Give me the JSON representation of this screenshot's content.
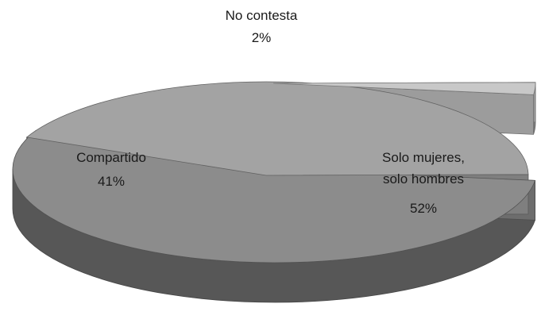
{
  "chart_data": {
    "type": "pie",
    "style": "3d-exploded",
    "slices": [
      {
        "label": "Solo mujeres, solo hombres",
        "label_lines": [
          "Solo mujeres,",
          "solo hombres"
        ],
        "value": 52,
        "value_label": "52%",
        "color": "#8c8c8c"
      },
      {
        "label": "Compartido",
        "label_lines": [
          "Compartido"
        ],
        "value": 41,
        "value_label": "41%",
        "color": "#a3a3a3"
      },
      {
        "label": "No contesta",
        "label_lines": [
          "No contesta"
        ],
        "value": 2,
        "value_label": "2%",
        "color": "#c8c8c8"
      }
    ]
  }
}
